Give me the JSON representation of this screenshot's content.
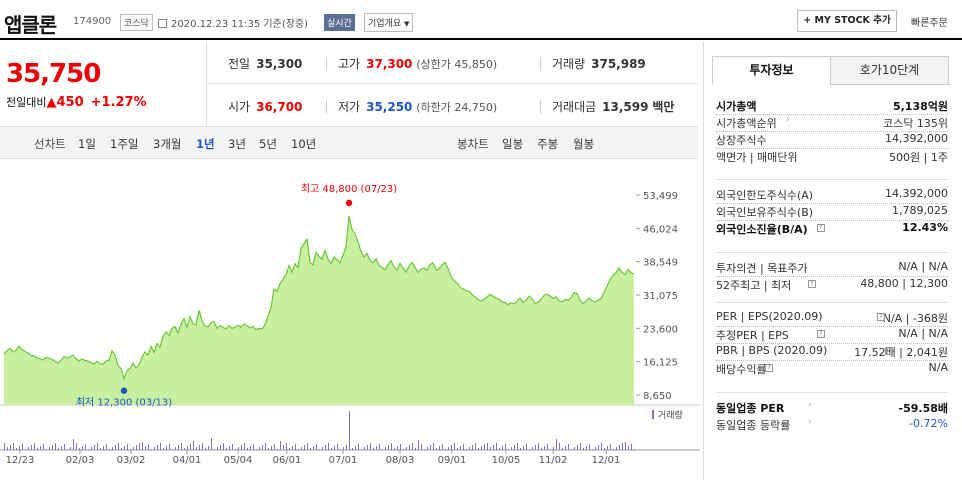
{
  "header": {
    "title": "앱클론",
    "code": "174900",
    "market": "코스닥",
    "datetime": "2020.12.23 11:35 기준(장중)",
    "live_badge": "실시간",
    "overview_button": "기업개요",
    "my_stock_button": "+ MY STOCK 추가",
    "quick_order": "빠른주문"
  },
  "quote": {
    "price": "35,750",
    "change_label": "전일대비",
    "change_arrow": "▲",
    "change_amount": "450",
    "change_pct": "+1.27%",
    "prev_close_label": "전일",
    "prev_close": "35,300",
    "high_label": "고가",
    "high": "37,300",
    "upper_limit": "(상한가 45,850)",
    "volume_label": "거래량",
    "volume": "375,989",
    "open_label": "시가",
    "open": "36,700",
    "low_label": "저가",
    "low": "35,250",
    "lower_limit": "(하한가 24,750)",
    "amount_label": "거래대금",
    "amount": "13,599",
    "amount_unit": "백만"
  },
  "chart_tabs": {
    "line_label": "선차트",
    "line_items": [
      "1일",
      "1주일",
      "3개월",
      "1년",
      "3년",
      "5년",
      "10년"
    ],
    "selected": "1년",
    "candle_label": "봉차트",
    "candle_items": [
      "일봉",
      "주봉",
      "월봉"
    ]
  },
  "chart_data": {
    "type": "area",
    "title": "",
    "y_ticks": [
      "53,499",
      "46,024",
      "38,549",
      "31,075",
      "23,600",
      "16,125",
      "8,650"
    ],
    "ylim": [
      8650,
      53499
    ],
    "x_ticks": [
      "12/23",
      "02/03",
      "03/02",
      "04/01",
      "05/04",
      "06/01",
      "07/01",
      "08/03",
      "09/01",
      "10/05",
      "11/02",
      "12/01"
    ],
    "volume_label": "거래량",
    "max_label": "최고 48,800 (07/23)",
    "min_label": "최저 12,300 (03/13)",
    "series": [
      {
        "values": [
          17800,
          18600,
          19100,
          18300,
          18700,
          19600,
          18900,
          18400,
          18100,
          17500,
          17400,
          17000,
          16800,
          16500,
          17100,
          16900,
          16600,
          16200,
          15800,
          16400,
          17300,
          16900,
          17200,
          17600,
          16800,
          16300,
          16700,
          16400,
          16300,
          15900,
          15600,
          16200,
          15700,
          15600,
          16300,
          16400,
          18600,
          17600,
          15300,
          14600,
          12300,
          14200,
          14600,
          15800,
          14700,
          15400,
          17100,
          18300,
          17600,
          19600,
          18200,
          20200,
          19400,
          21800,
          22800,
          22000,
          23600,
          24000,
          22500,
          24600,
          25800,
          23800,
          26200,
          24600,
          24400,
          27600,
          25400,
          24100,
          23900,
          24900,
          25100,
          23600,
          24200,
          23800,
          23500,
          24200,
          23600,
          23900,
          24300,
          23800,
          24600,
          24200,
          23700,
          24100,
          23300,
          23600,
          23500,
          24400,
          26300,
          28300,
          32400,
          31900,
          33600,
          34600,
          35700,
          37700,
          36200,
          38100,
          37200,
          41600,
          42600,
          43600,
          38400,
          37800,
          40600,
          39800,
          39100,
          41100,
          39200,
          38100,
          39600,
          39000,
          38300,
          40000,
          41900,
          48800,
          45800,
          44800,
          43000,
          40800,
          39600,
          40400,
          38800,
          38300,
          39200,
          37700,
          37300,
          36700,
          37900,
          38800,
          37400,
          36600,
          38200,
          37100,
          36200,
          37500,
          38400,
          37300,
          36100,
          36900,
          37100,
          36600,
          37900,
          38300,
          36700,
          36900,
          37800,
          38400,
          37100,
          35200,
          34300,
          33800,
          32800,
          32400,
          32100,
          31900,
          31200,
          30700,
          30100,
          29700,
          30100,
          30600,
          31200,
          30800,
          30400,
          30100,
          29500,
          29400,
          28900,
          29300,
          29100,
          29600,
          30400,
          29400,
          29900,
          30800,
          30300,
          29200,
          29400,
          30100,
          31000,
          31300,
          30900,
          30300,
          30700,
          29800,
          29500,
          30100,
          29900,
          30400,
          31600,
          31400,
          29900,
          29100,
          29700,
          30400,
          29800,
          29500,
          29900,
          30300,
          31600,
          33100,
          34500,
          35400,
          36100,
          37100,
          36200,
          35600,
          36800,
          36100,
          35750
        ]
      }
    ]
  },
  "panel": {
    "tab_active": "투자정보",
    "tab_other": "호가10단계",
    "rows1": [
      {
        "k": "시가총액",
        "v": "5,138억원",
        "bold": true
      },
      {
        "k": "시가총액순위",
        "v": "코스닥 135위"
      },
      {
        "k": "상장주식수",
        "v": "14,392,000"
      },
      {
        "k": "액면가 | 매매단위",
        "v": "500원 | 1주"
      }
    ],
    "rows2": [
      {
        "k": "외국인한도주식수(A)",
        "v": "14,392,000"
      },
      {
        "k": "외국인보유주식수(B)",
        "v": "1,789,025"
      },
      {
        "k": "외국인소진율(B/A)",
        "v": "12.43%",
        "bold": true
      }
    ],
    "rows3": [
      {
        "k": "투자의견 | 목표주가",
        "v": "N/A | N/A"
      },
      {
        "k": "52주최고 | 최저",
        "v": "48,800 | 12,300"
      }
    ],
    "rows4": [
      {
        "k": "PER | EPS(2020.09)",
        "v": "N/A | -368원"
      },
      {
        "k": "추정PER | EPS",
        "v": "N/A | N/A"
      },
      {
        "k": "PBR | BPS (2020.09)",
        "v": "17.52배 | 2,041원"
      },
      {
        "k": "배당수익률",
        "v": "N/A"
      }
    ],
    "rows5": [
      {
        "k": "동일업종 PER",
        "v": "-59.58배",
        "bold": true
      },
      {
        "k": "동일업종 등락률",
        "v": "-0.72%"
      }
    ]
  },
  "colors": {
    "up": "#e00000",
    "down": "#1c56c5",
    "area_fill": "#c8f0a0",
    "area_line": "#6cc83a"
  }
}
